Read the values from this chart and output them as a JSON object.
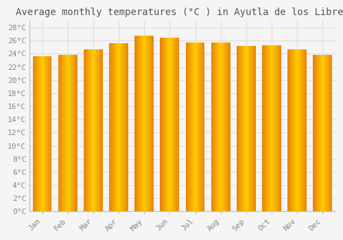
{
  "title": "Average monthly temperatures (°C ) in Ayutla de los Libres",
  "months": [
    "Jan",
    "Feb",
    "Mar",
    "Apr",
    "May",
    "Jun",
    "Jul",
    "Aug",
    "Sep",
    "Oct",
    "Nov",
    "Dec"
  ],
  "temperatures": [
    23.6,
    23.8,
    24.7,
    25.6,
    26.8,
    26.4,
    25.7,
    25.7,
    25.2,
    25.3,
    24.7,
    23.8
  ],
  "bar_color_left": "#E8820A",
  "bar_color_center": "#FFCC00",
  "bar_color_right": "#E8820A",
  "background_color": "#F5F5F5",
  "plot_background": "#F5F5F5",
  "grid_color": "#DDDDDD",
  "ytick_labels": [
    "0°C",
    "2°C",
    "4°C",
    "6°C",
    "8°C",
    "10°C",
    "12°C",
    "14°C",
    "16°C",
    "18°C",
    "20°C",
    "22°C",
    "24°C",
    "26°C",
    "28°C"
  ],
  "ytick_values": [
    0,
    2,
    4,
    6,
    8,
    10,
    12,
    14,
    16,
    18,
    20,
    22,
    24,
    26,
    28
  ],
  "ylim": [
    0,
    29
  ],
  "title_fontsize": 10,
  "tick_fontsize": 8,
  "font_family": "monospace",
  "text_color": "#888888",
  "title_color": "#555555",
  "spine_color": "#BBBBBB"
}
